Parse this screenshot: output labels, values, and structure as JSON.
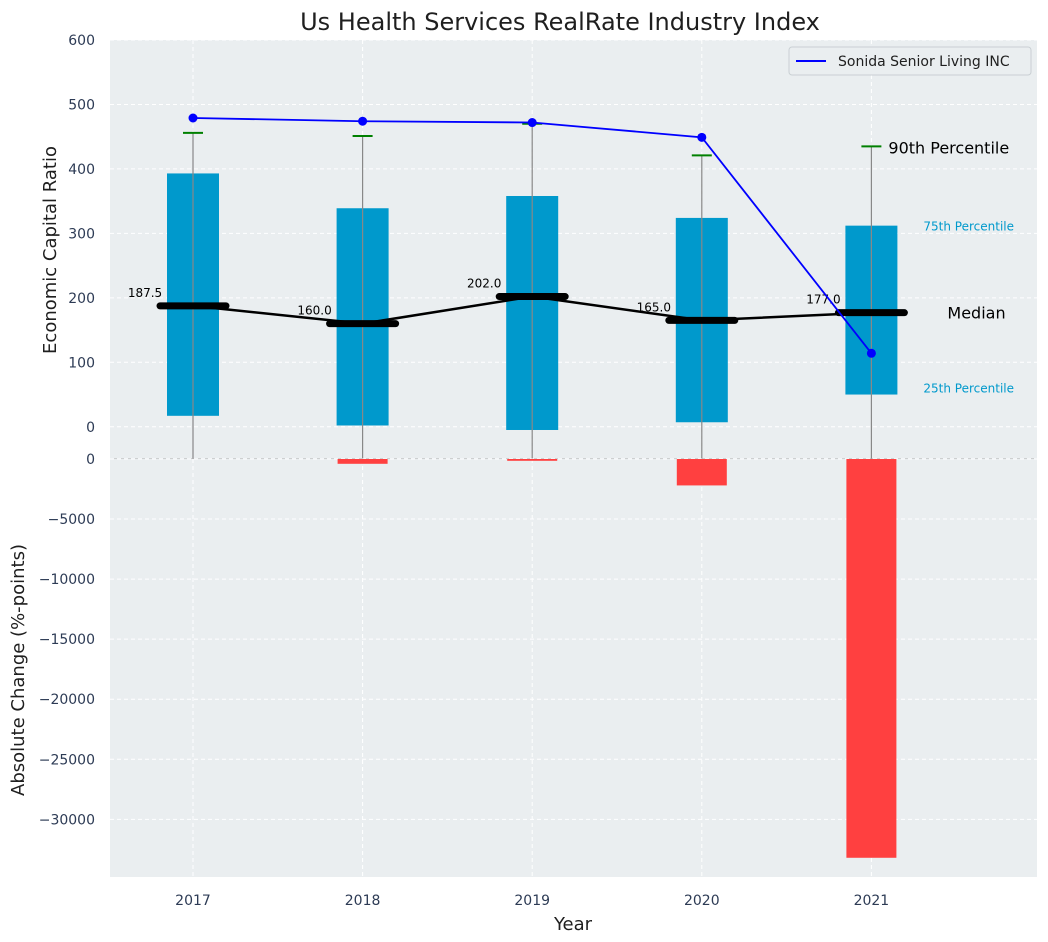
{
  "chart_data": [
    {
      "type": "box",
      "title": "Us Health Services RealRate Industry Index",
      "ylabel": "Economic Capital Ratio",
      "ylim": [
        -50,
        600
      ],
      "yticks": [
        "0",
        "100",
        "200",
        "300",
        "400",
        "500",
        "600"
      ],
      "categories": [
        "2017",
        "2018",
        "2019",
        "2020",
        "2021"
      ],
      "p25": [
        17,
        2,
        -5,
        7,
        50
      ],
      "p75": [
        393,
        339,
        358,
        324,
        312
      ],
      "p90": [
        456,
        451,
        470,
        421,
        435
      ],
      "median": [
        187.5,
        160.0,
        202.0,
        165.0,
        177.0
      ],
      "median_labels": [
        "187.5",
        "160.0",
        "202.0",
        "165.0",
        "177.0"
      ],
      "series": [
        {
          "name": "Sonida Senior Living INC",
          "values": [
            479,
            474,
            472,
            449,
            114
          ],
          "color": "#0000ff"
        }
      ],
      "annotations": {
        "p90": "90th Percentile",
        "p75": "75th Percentile",
        "median": "Median",
        "p25": "25th Percentile"
      },
      "legend": "top-right",
      "grid": true
    },
    {
      "type": "bar",
      "xlabel": "Year",
      "ylabel": "Absolute Change (%-points)",
      "ylim": [
        -34800,
        0
      ],
      "yticks": [
        "0",
        "−5000",
        "−10000",
        "−15000",
        "−20000",
        "−25000",
        "−30000"
      ],
      "categories": [
        "2017",
        "2018",
        "2019",
        "2020",
        "2021"
      ],
      "values": [
        0,
        -400,
        -150,
        -2200,
        -33200
      ],
      "grid": true
    }
  ],
  "colors": {
    "box": "#0099cc",
    "whisker": "#888888",
    "p90_cap": "#008000",
    "median": "#000000",
    "bar": "#ff4040",
    "company": "#0000ff",
    "plot_bg": "#eaeef0",
    "annotation_blue": "#0099cc"
  }
}
